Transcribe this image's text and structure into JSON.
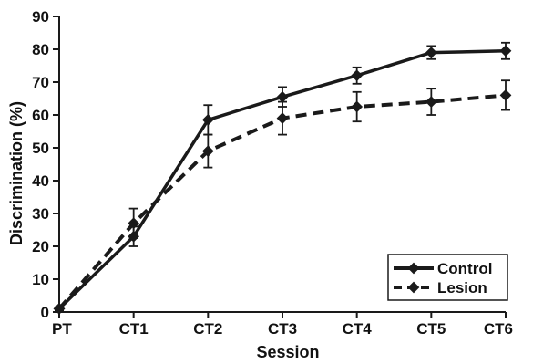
{
  "chart_data": {
    "type": "line",
    "title": "",
    "xlabel": "Session",
    "ylabel": "Discrimination (%)",
    "categories": [
      "PT",
      "CT1",
      "CT2",
      "CT3",
      "CT4",
      "CT5",
      "CT6"
    ],
    "ylim": [
      0,
      90
    ],
    "yticks": [
      0,
      10,
      20,
      30,
      40,
      50,
      60,
      70,
      80,
      90
    ],
    "grid": false,
    "legend_position": "bottom-right",
    "series": [
      {
        "name": "Control",
        "style": "solid",
        "color": "#1a1a1a",
        "values": [
          1,
          23,
          58.5,
          65.5,
          72,
          79,
          79.5
        ],
        "errors": [
          0.5,
          3,
          4.5,
          3,
          2.5,
          2,
          2.5
        ]
      },
      {
        "name": "Lesion",
        "style": "dashed",
        "color": "#1a1a1a",
        "values": [
          1,
          27,
          49,
          59,
          62.5,
          64,
          66
        ],
        "errors": [
          0.5,
          4.5,
          5,
          5,
          4.5,
          4,
          4.5
        ]
      }
    ]
  }
}
